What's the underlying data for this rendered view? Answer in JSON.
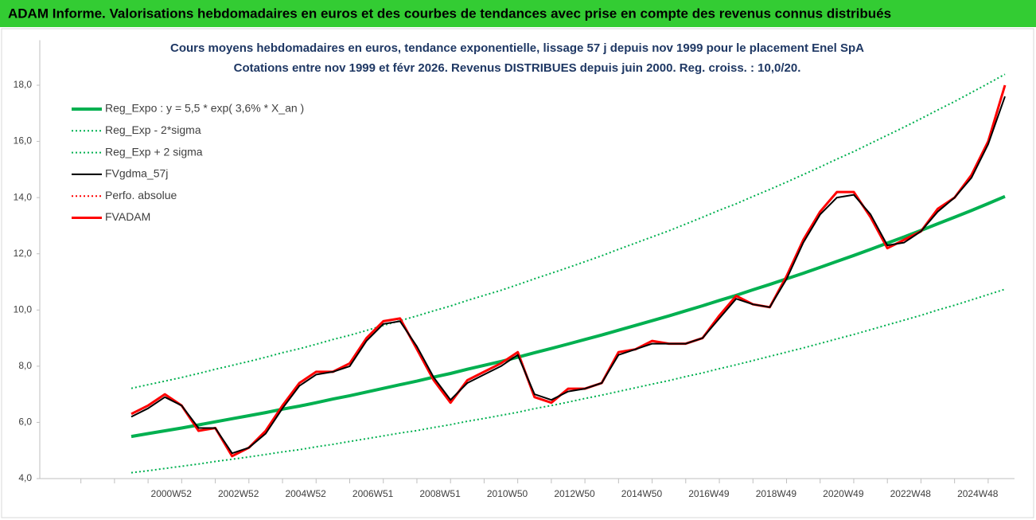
{
  "header": {
    "title": "ADAM Informe. Valorisations hebdomadaires en euros et des courbes de tendances avec prise en compte des revenus connus distribués"
  },
  "chart_data": {
    "type": "line",
    "title": "Cours moyens hebdomadaires en euros, tendance exponentielle, lissage 57 j depuis nov 1999 pour le placement Enel SpA",
    "subtitle": "Cotations entre nov 1999 et févr 2026. Revenus DISTRIBUES depuis juin 2000. Reg. croiss. : 10,0/20.",
    "categories": [
      null,
      null,
      "2000W52",
      null,
      null,
      null,
      "2002W52",
      null,
      null,
      null,
      "2004W52",
      null,
      null,
      null,
      "2006W51",
      null,
      null,
      null,
      "2008W51",
      null,
      null,
      null,
      "2010W50",
      null,
      null,
      null,
      "2012W50",
      null,
      null,
      null,
      "2014W50",
      null,
      null,
      null,
      "2016W49",
      null,
      null,
      null,
      "2018W49",
      null,
      null,
      null,
      "2020W49",
      null,
      null,
      null,
      "2022W48",
      null,
      null,
      null,
      "2024W48",
      null,
      null
    ],
    "ylim": [
      4,
      19.6
    ],
    "yticks": [
      {
        "value": 4,
        "label": "4,0"
      },
      {
        "value": 6,
        "label": "6,0"
      },
      {
        "value": 8,
        "label": "8,0"
      },
      {
        "value": 10,
        "label": "10,0"
      },
      {
        "value": 12,
        "label": "12,0"
      },
      {
        "value": 14,
        "label": "14,0"
      },
      {
        "value": 16,
        "label": "16,0"
      },
      {
        "value": 18,
        "label": "18,0"
      }
    ],
    "series": [
      {
        "name": "Reg_Expo : y = 5,5 * exp( 3,6% *  X_an )",
        "color": "#00b050",
        "style": "thick",
        "values": [
          5.5,
          5.6,
          5.7,
          5.8,
          5.91,
          6.02,
          6.13,
          6.24,
          6.35,
          6.47,
          6.58,
          6.7,
          6.83,
          6.95,
          7.08,
          7.21,
          7.34,
          7.47,
          7.61,
          7.74,
          7.89,
          8.03,
          8.17,
          8.32,
          8.48,
          8.63,
          8.79,
          8.95,
          9.11,
          9.28,
          9.45,
          9.62,
          9.79,
          9.97,
          10.15,
          10.34,
          10.52,
          10.72,
          10.91,
          11.11,
          11.31,
          11.52,
          11.73,
          11.94,
          12.16,
          12.38,
          12.6,
          12.83,
          13.07,
          13.3,
          13.54,
          13.79,
          14.04
        ]
      },
      {
        "name": "Reg_Exp - 2*sigma",
        "color": "#00b050",
        "style": "dotted",
        "values": [
          4.21,
          4.28,
          4.36,
          4.44,
          4.52,
          4.61,
          4.69,
          4.77,
          4.86,
          4.95,
          5.03,
          5.13,
          5.22,
          5.32,
          5.42,
          5.52,
          5.62,
          5.71,
          5.82,
          5.92,
          6.04,
          6.14,
          6.25,
          6.36,
          6.49,
          6.6,
          6.72,
          6.85,
          6.97,
          7.1,
          7.23,
          7.36,
          7.49,
          7.63,
          7.76,
          7.91,
          8.05,
          8.2,
          8.35,
          8.5,
          8.65,
          8.81,
          8.97,
          9.13,
          9.3,
          9.47,
          9.64,
          9.81,
          10.0,
          10.17,
          10.36,
          10.55,
          10.74
        ]
      },
      {
        "name": "Reg_Exp + 2 sigma",
        "color": "#00b050",
        "style": "dotted",
        "values": [
          7.21,
          7.34,
          7.47,
          7.6,
          7.74,
          7.89,
          8.03,
          8.17,
          8.32,
          8.48,
          8.62,
          8.78,
          8.95,
          9.1,
          9.27,
          9.45,
          9.62,
          9.79,
          9.97,
          10.14,
          10.34,
          10.52,
          10.7,
          10.9,
          11.11,
          11.31,
          11.51,
          11.72,
          11.93,
          12.16,
          12.38,
          12.6,
          12.82,
          13.06,
          13.3,
          13.55,
          13.78,
          14.04,
          14.29,
          14.55,
          14.82,
          15.09,
          15.37,
          15.64,
          15.93,
          16.22,
          16.51,
          16.81,
          17.12,
          17.42,
          17.74,
          18.06,
          18.39
        ]
      },
      {
        "name": "FVgdma_57j",
        "color": "#000000",
        "style": "solid",
        "values": [
          6.2,
          6.5,
          6.9,
          6.6,
          5.8,
          5.8,
          4.9,
          5.1,
          5.6,
          6.5,
          7.3,
          7.7,
          7.8,
          8.0,
          8.9,
          9.5,
          9.6,
          8.7,
          7.6,
          6.8,
          7.4,
          7.7,
          8.0,
          8.4,
          7.0,
          6.8,
          7.1,
          7.2,
          7.4,
          8.4,
          8.6,
          8.8,
          8.8,
          8.8,
          9.0,
          9.7,
          10.4,
          10.2,
          10.1,
          11.1,
          12.4,
          13.4,
          14.0,
          14.1,
          13.4,
          12.3,
          12.4,
          12.8,
          13.5,
          14.0,
          14.7,
          15.9,
          17.6
        ]
      },
      {
        "name": "Perfo. absolue",
        "color": "#ff0000",
        "style": "dotted",
        "values": [
          null,
          null,
          null,
          null,
          null,
          null,
          null,
          null,
          null,
          null,
          null,
          null,
          null,
          null,
          null,
          null,
          null,
          null,
          null,
          null,
          null,
          null,
          null,
          null,
          null,
          null,
          null,
          null,
          null,
          null,
          null,
          null,
          null,
          null,
          null,
          null,
          null,
          null,
          null,
          null,
          null,
          null,
          null,
          null,
          null,
          null,
          null,
          null,
          null,
          null,
          null,
          null,
          null
        ]
      },
      {
        "name": "FVADAM",
        "color": "#ff0000",
        "style": "solid",
        "values": [
          6.3,
          6.6,
          7.0,
          6.6,
          5.7,
          5.8,
          4.8,
          5.1,
          5.7,
          6.6,
          7.4,
          7.8,
          7.8,
          8.1,
          9.0,
          9.6,
          9.7,
          8.6,
          7.5,
          6.7,
          7.5,
          7.8,
          8.1,
          8.5,
          6.9,
          6.7,
          7.2,
          7.2,
          7.4,
          8.5,
          8.6,
          8.9,
          8.8,
          8.8,
          9.0,
          9.8,
          10.5,
          10.2,
          10.1,
          11.2,
          12.5,
          13.5,
          14.2,
          14.2,
          13.3,
          12.2,
          12.5,
          12.8,
          13.6,
          14.0,
          14.8,
          16.0,
          18.0
        ]
      }
    ]
  }
}
